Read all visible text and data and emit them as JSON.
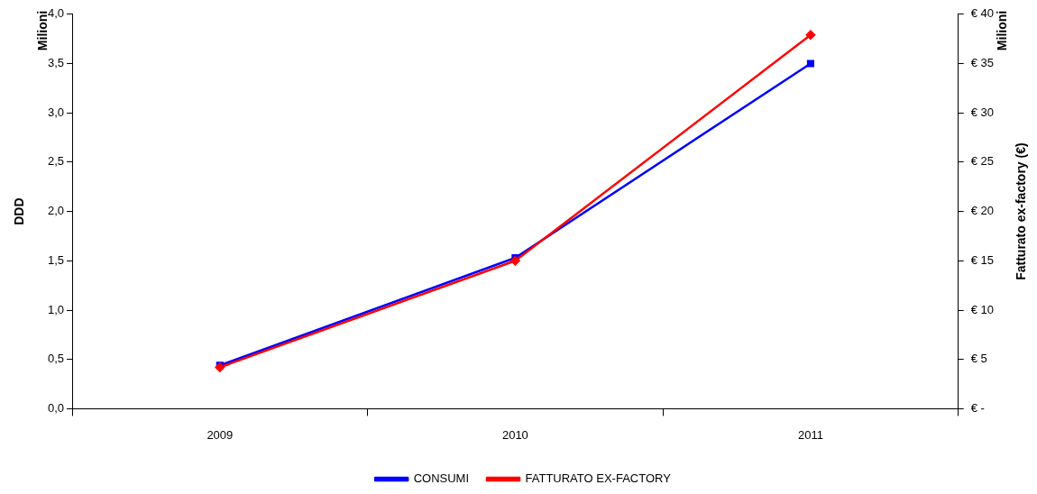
{
  "chart_data": {
    "type": "line",
    "categories": [
      "2009",
      "2010",
      "2011"
    ],
    "series": [
      {
        "name": "CONSUMI",
        "color": "#0000ff",
        "values": [
          0.44,
          1.53,
          3.5
        ],
        "marker": "square"
      },
      {
        "name": "FATTURATO EX-FACTORY",
        "color": "#ff0000",
        "values": [
          4.2,
          15.0,
          37.9
        ],
        "axis": "y2",
        "marker": "diamond"
      }
    ],
    "ylabel": "DDD",
    "y2label": "Fatturato ex-factory (€)",
    "annotations": [
      "Milioni",
      "Milioni"
    ],
    "ylim": [
      0,
      4
    ],
    "yticks": [
      {
        "value": 0,
        "label": "0,0"
      },
      {
        "value": 0.5,
        "label": "0,5"
      },
      {
        "value": 1,
        "label": "1,0"
      },
      {
        "value": 1.5,
        "label": "1,5"
      },
      {
        "value": 2,
        "label": "2,0"
      },
      {
        "value": 2.5,
        "label": "2,5"
      },
      {
        "value": 3,
        "label": "3,0"
      },
      {
        "value": 3.5,
        "label": "3,5"
      },
      {
        "value": 4,
        "label": "4,0"
      }
    ],
    "y2lim": [
      0,
      40
    ],
    "y2ticks": [
      {
        "value": 0,
        "label": "€ -"
      },
      {
        "value": 5,
        "label": "€ 5"
      },
      {
        "value": 10,
        "label": "€ 10"
      },
      {
        "value": 15,
        "label": "€ 15"
      },
      {
        "value": 20,
        "label": "€ 20"
      },
      {
        "value": 25,
        "label": "€ 25"
      },
      {
        "value": 30,
        "label": "€ 30"
      },
      {
        "value": 35,
        "label": "€ 35"
      },
      {
        "value": 40,
        "label": "€ 40"
      }
    ],
    "grid": false,
    "legend": "bottom",
    "line_style": "solid"
  }
}
